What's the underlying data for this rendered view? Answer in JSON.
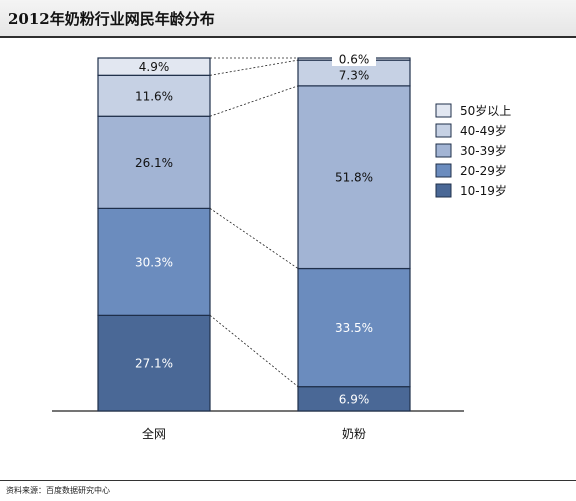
{
  "title": "2012年奶粉行业网民年龄分布",
  "source": "资料来源：百度数据研究中心",
  "chart_data": {
    "type": "bar",
    "stacked": true,
    "normalized": true,
    "categories": [
      "全网",
      "奶粉"
    ],
    "series": [
      {
        "name": "10-19岁",
        "values": [
          27.1,
          6.9
        ],
        "color": "#4a6896"
      },
      {
        "name": "20-29岁",
        "values": [
          30.3,
          33.5
        ],
        "color": "#6b8cbe"
      },
      {
        "name": "30-39岁",
        "values": [
          26.1,
          51.8
        ],
        "color": "#a2b4d4"
      },
      {
        "name": "40-49岁",
        "values": [
          11.6,
          7.3
        ],
        "color": "#c6d1e4"
      },
      {
        "name": "50岁以上",
        "values": [
          4.9,
          0.6
        ],
        "color": "#e2e7f1"
      }
    ],
    "labels": [
      [
        "27.1%",
        "30.3%",
        "26.1%",
        "11.6%",
        "4.9%"
      ],
      [
        "6.9%",
        "33.5%",
        "51.8%",
        "7.3%",
        "0.6%"
      ]
    ],
    "legend_position": "right",
    "connector_lines": true,
    "grid": false
  }
}
